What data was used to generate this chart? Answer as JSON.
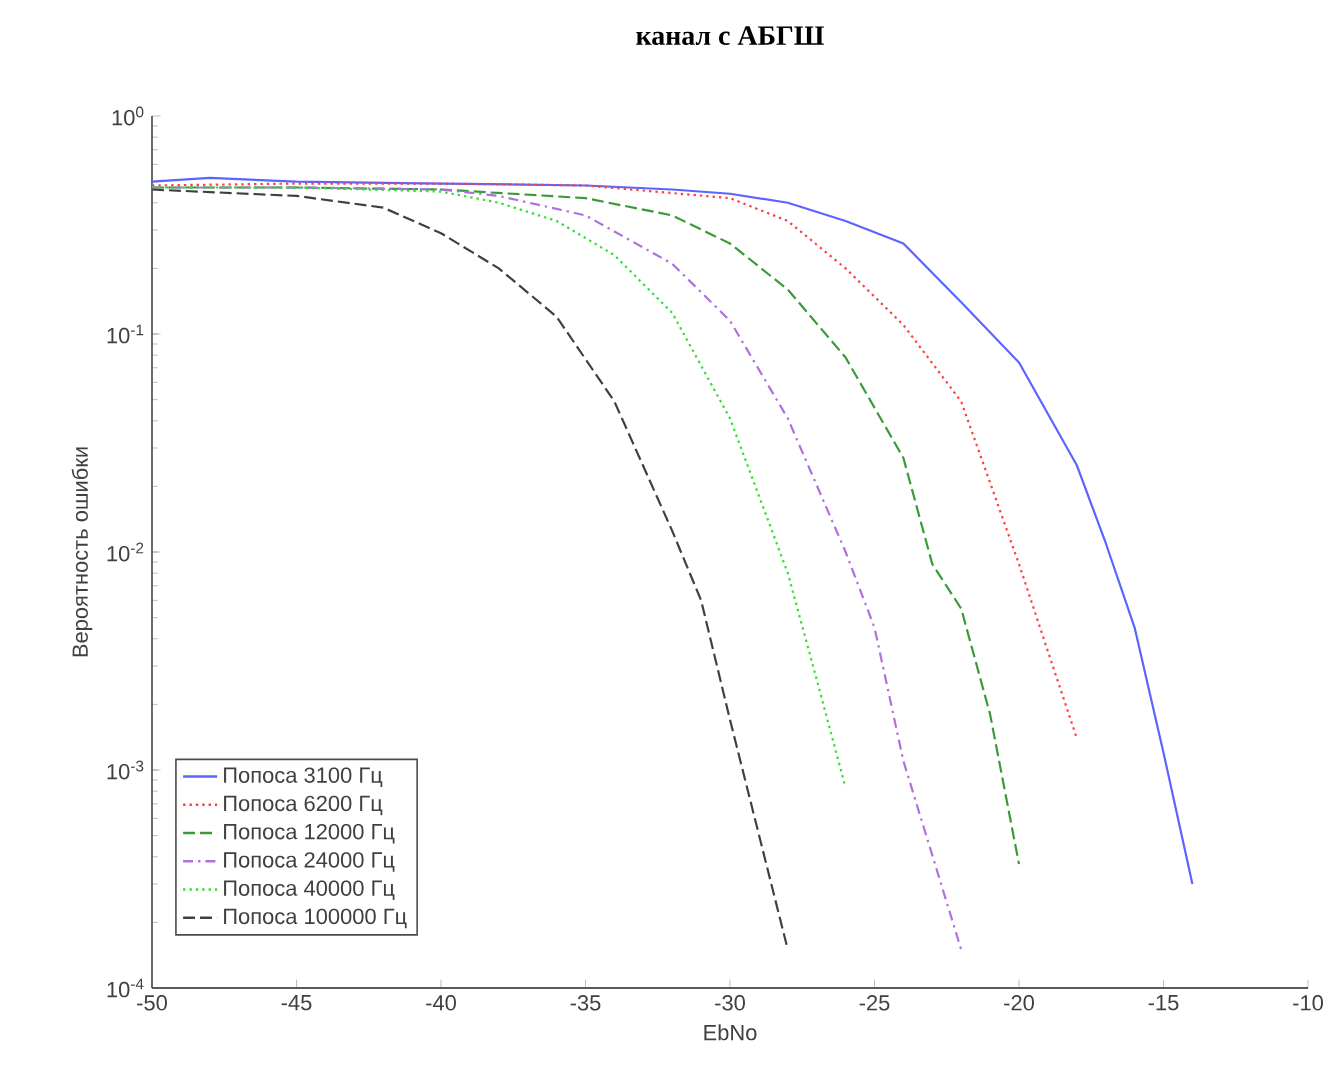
{
  "chart_data": {
    "type": "line",
    "title": "канал с АБГШ",
    "xlabel": "EbNo",
    "ylabel": "Вероятность ошибки",
    "log": "y",
    "xlim": [
      -50,
      -10
    ],
    "xticks": [
      -50,
      -45,
      -40,
      -35,
      -30,
      -25,
      -20,
      -15,
      -10
    ],
    "ylim": [
      0.0001,
      1
    ],
    "yticks": [
      {
        "value": 0.0001,
        "label": "10$^{-4}$"
      },
      {
        "value": 0.001,
        "label": "10$^{-3}$"
      },
      {
        "value": 0.01,
        "label": "10$^{-2}$"
      },
      {
        "value": 0.1,
        "label": "10$^{-1}$"
      },
      {
        "value": 1,
        "label": "10$^{0}$"
      }
    ],
    "grid": false,
    "legend": "bottom left",
    "marker": "none",
    "series": [
      {
        "name": "Попоса 3100 Гц",
        "color": "#5a64ff",
        "line_style": "solid",
        "x": [
          -50,
          -48,
          -45,
          -40,
          -35,
          -32,
          -30,
          -28,
          -26,
          -24,
          -22,
          -20,
          -18,
          -17,
          -16,
          -15,
          -14
        ],
        "values": [
          0.5,
          0.52,
          0.5,
          0.49,
          0.48,
          0.46,
          0.44,
          0.4,
          0.33,
          0.26,
          0.14,
          0.074,
          0.025,
          0.011,
          0.0045,
          0.0012,
          0.0003
        ]
      },
      {
        "name": "Попоса 6200 Гц",
        "color": "#ff4040",
        "line_style": "dotted",
        "x": [
          -50,
          -45,
          -40,
          -35,
          -30,
          -28,
          -26,
          -24,
          -22,
          -20,
          -19,
          -18
        ],
        "values": [
          0.48,
          0.49,
          0.49,
          0.48,
          0.42,
          0.33,
          0.2,
          0.11,
          0.049,
          0.0088,
          0.0035,
          0.0014
        ]
      },
      {
        "name": "Попоса 12000 Гц",
        "color": "#3a9a3a",
        "line_style": "dashed",
        "x": [
          -50,
          -45,
          -40,
          -35,
          -32,
          -30,
          -28,
          -26,
          -24,
          -23,
          -22,
          -21,
          -20
        ],
        "values": [
          0.47,
          0.47,
          0.46,
          0.42,
          0.35,
          0.26,
          0.16,
          0.078,
          0.027,
          0.0088,
          0.0055,
          0.0018,
          0.00037
        ]
      },
      {
        "name": "Попоса 24000 Гц",
        "color": "#b070e0",
        "line_style": "dashdot",
        "x": [
          -50,
          -45,
          -40,
          -38,
          -35,
          -32,
          -30,
          -28,
          -26,
          -25,
          -24,
          -22
        ],
        "values": [
          0.47,
          0.47,
          0.46,
          0.43,
          0.35,
          0.21,
          0.115,
          0.041,
          0.01,
          0.0045,
          0.0011,
          0.00015
        ]
      },
      {
        "name": "Попоса 40000 Гц",
        "color": "#30e030",
        "line_style": "dotted",
        "x": [
          -50,
          -45,
          -40,
          -38,
          -36,
          -34,
          -32,
          -30,
          -28,
          -27,
          -26
        ],
        "values": [
          0.47,
          0.47,
          0.45,
          0.4,
          0.33,
          0.23,
          0.125,
          0.041,
          0.008,
          0.0026,
          0.00083
        ]
      },
      {
        "name": "Попоса 100000 Гц",
        "color": "#404040",
        "line_style": "dashed",
        "x": [
          -50,
          -45,
          -42,
          -40,
          -38,
          -36,
          -34,
          -32,
          -31,
          -30,
          -28
        ],
        "values": [
          0.46,
          0.43,
          0.38,
          0.29,
          0.2,
          0.12,
          0.049,
          0.0125,
          0.006,
          0.0017,
          0.00015
        ]
      }
    ]
  }
}
